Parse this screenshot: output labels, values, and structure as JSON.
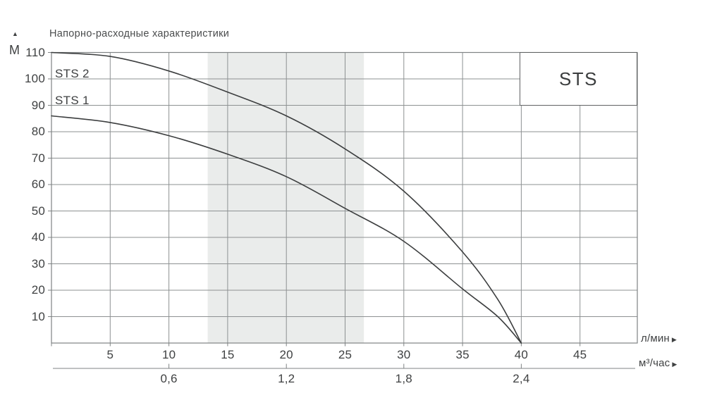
{
  "title": "Напорно-расходные характеристики",
  "badge_label": "STS",
  "icons": {
    "up_arrow": "▲",
    "right_arrow": "▶"
  },
  "y_axis": {
    "unit": "М",
    "ticks": [
      110,
      100,
      90,
      80,
      70,
      60,
      50,
      40,
      30,
      20,
      10
    ]
  },
  "x_axis_primary": {
    "unit": "л/мин",
    "ticks": [
      5,
      10,
      15,
      20,
      25,
      30,
      35,
      40,
      45
    ]
  },
  "x_axis_secondary": {
    "unit": "м³/час",
    "ticks": [
      {
        "label": "0,6",
        "at_lmin": 10
      },
      {
        "label": "1,2",
        "at_lmin": 20
      },
      {
        "label": "1,8",
        "at_lmin": 30
      },
      {
        "label": "2,4",
        "at_lmin": 40
      }
    ]
  },
  "chart_data": {
    "type": "line",
    "title": "Напорно-расходные характеристики",
    "ylabel": "М",
    "xlabel_primary": "л/мин",
    "xlabel_secondary": "м³/час",
    "x_lmin": [
      0,
      5,
      10,
      15,
      20,
      25,
      30,
      35,
      38,
      40
    ],
    "series": [
      {
        "name": "STS 2",
        "values": [
          110,
          108.5,
          103,
          95,
          86,
          73.5,
          57.5,
          34.5,
          16.5,
          0
        ]
      },
      {
        "name": "STS 1",
        "values": [
          86,
          83.5,
          78.5,
          71.5,
          63,
          51,
          38.5,
          20.5,
          10,
          0
        ]
      }
    ],
    "xlim_lmin": [
      0,
      49.9
    ],
    "ylim": [
      0,
      110
    ],
    "y_ticks": [
      10,
      20,
      30,
      40,
      50,
      60,
      70,
      80,
      90,
      100,
      110
    ],
    "x_ticks_lmin": [
      5,
      10,
      15,
      20,
      25,
      30,
      35,
      40,
      45
    ],
    "x_ticks_m3h": [
      {
        "label": "0,6",
        "at_lmin": 10
      },
      {
        "label": "1,2",
        "at_lmin": 20
      },
      {
        "label": "1,8",
        "at_lmin": 30
      },
      {
        "label": "2,4",
        "at_lmin": 40
      }
    ],
    "operating_band_lmin": [
      13.3,
      26.6
    ],
    "grid": true,
    "legend_position": "curve labels at top-left, family badge at top-right"
  },
  "colors": {
    "background": "#ffffff",
    "curve": "#3c3e3f",
    "grid": "#8d9192",
    "frame": "#7f8384",
    "band": "#eaeceb",
    "text": "#3f4142",
    "badge_border": "#606263"
  }
}
